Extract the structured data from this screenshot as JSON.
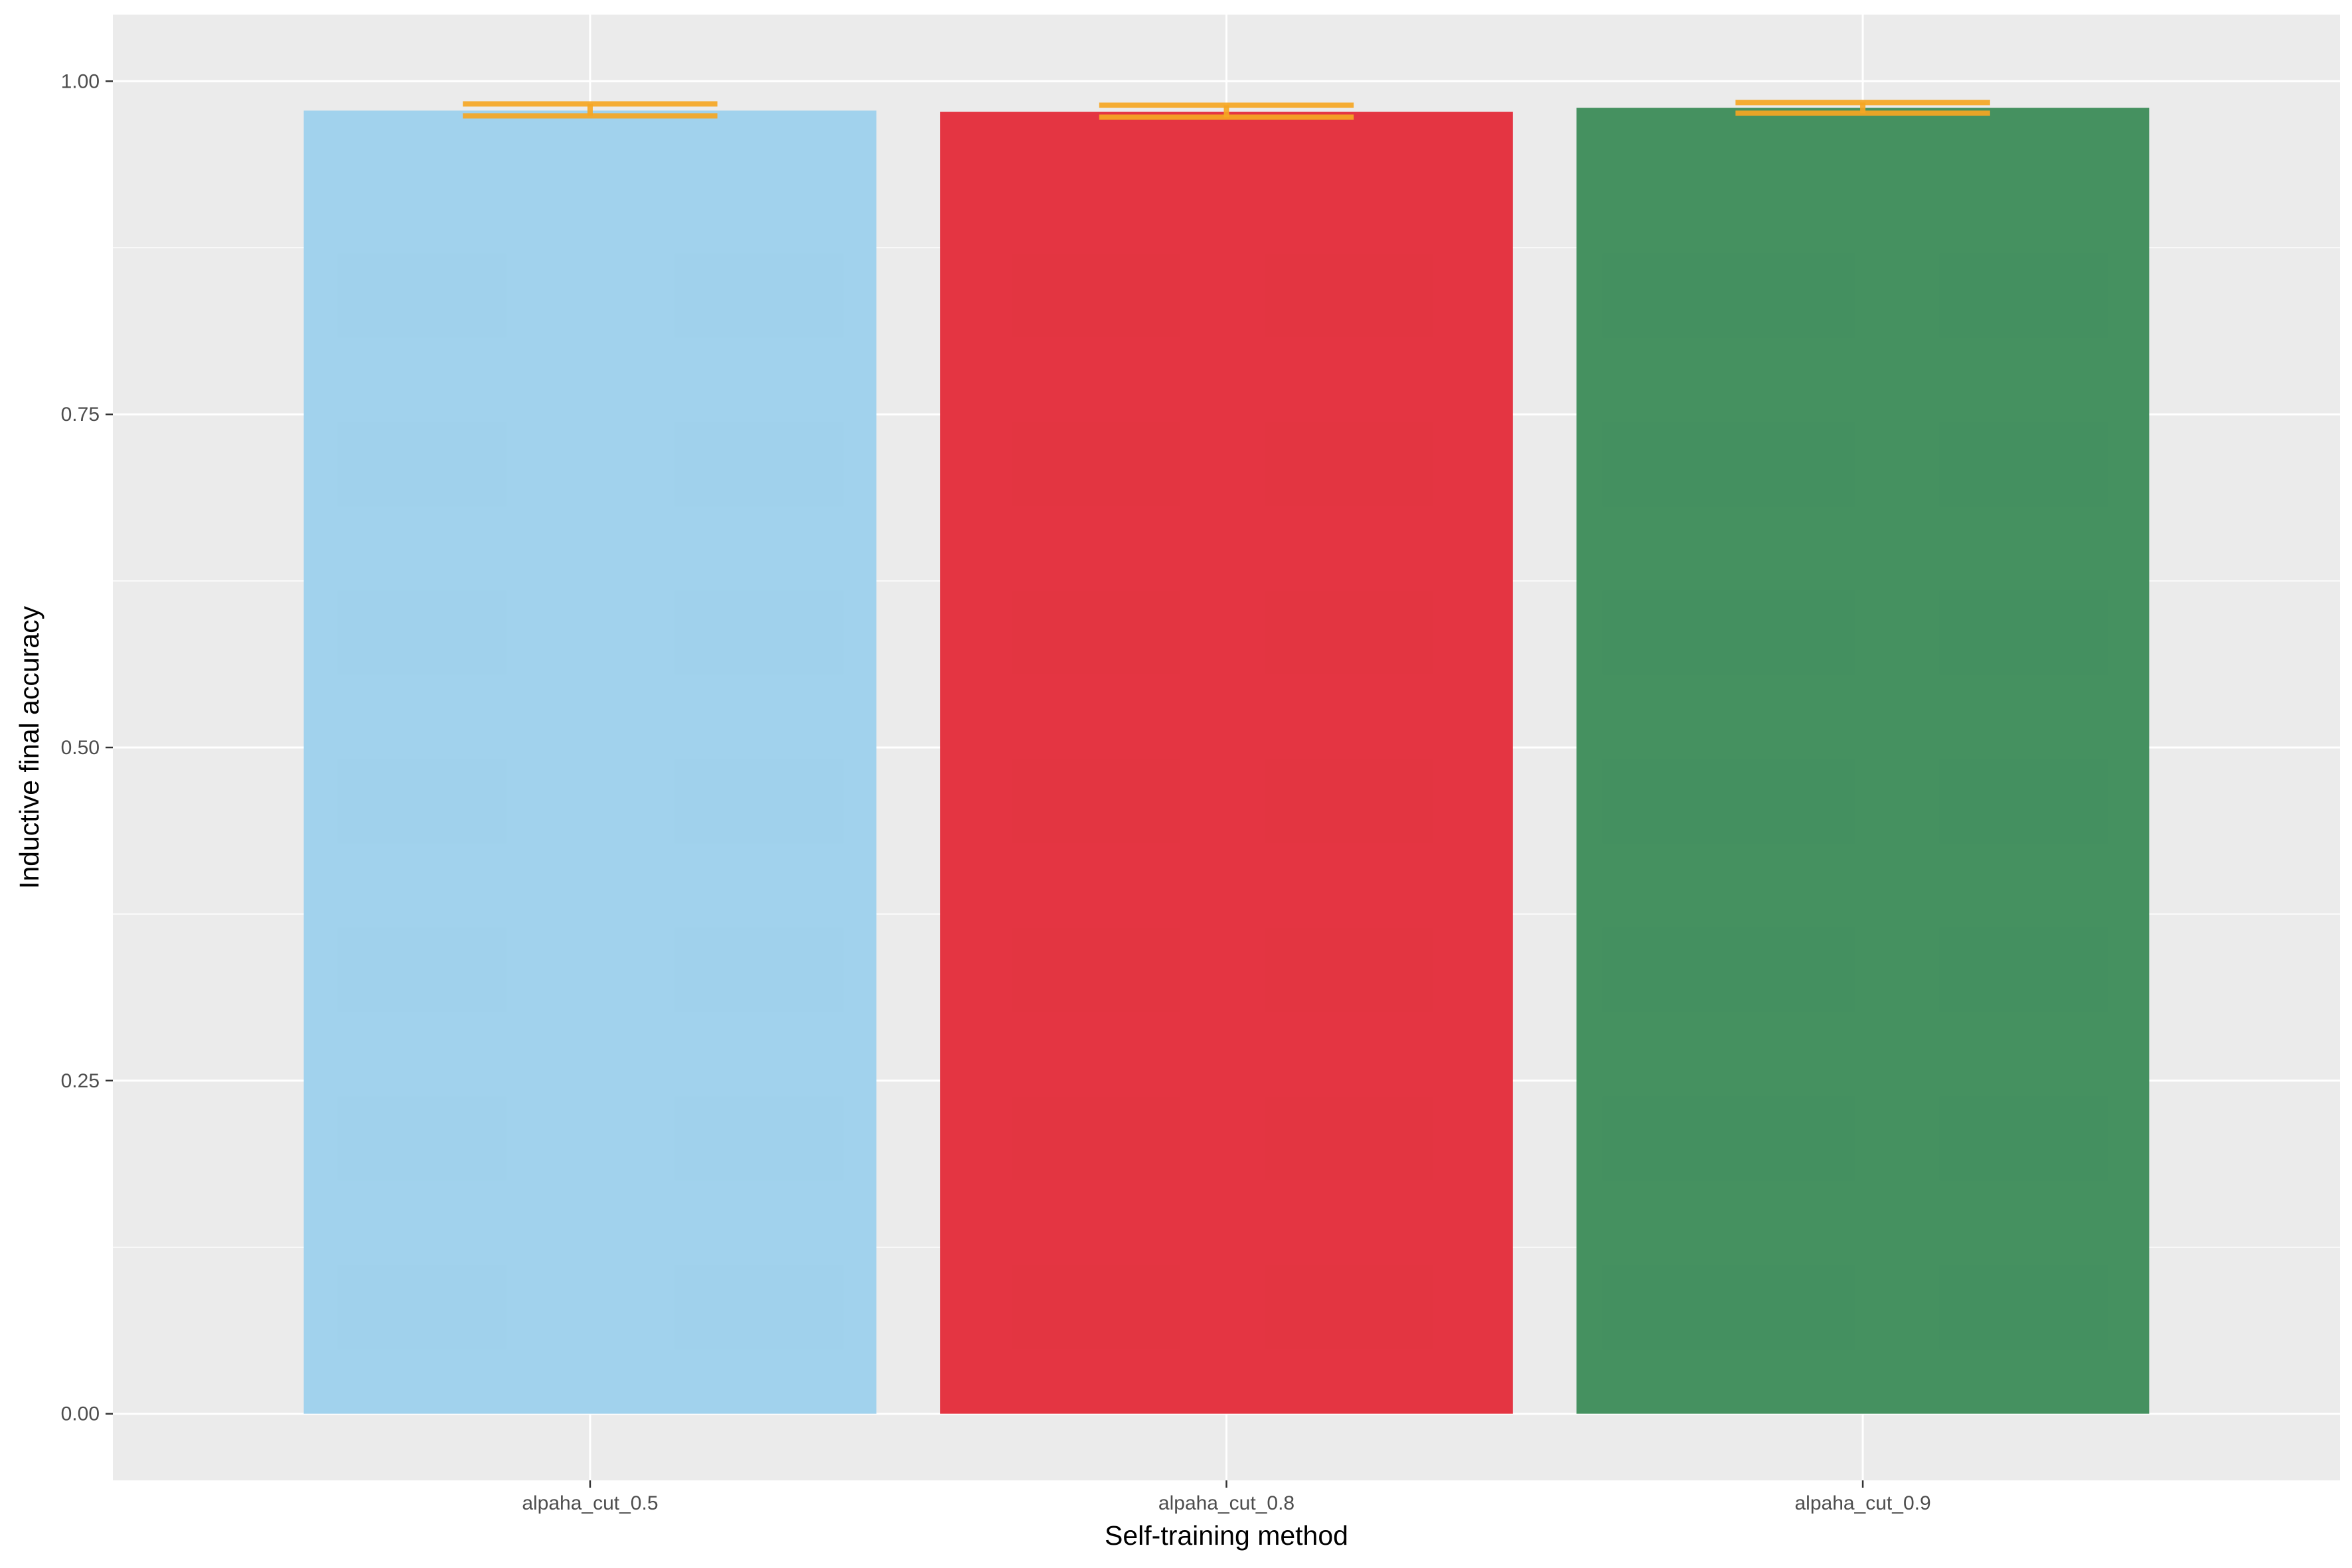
{
  "chart_data": {
    "type": "bar",
    "title": "",
    "xlabel": "Self-training method",
    "ylabel": "Inductive final accuracy",
    "categories": [
      "alpaha_cut_0.5",
      "alpaha_cut_0.8",
      "alpaha_cut_0.9"
    ],
    "values": [
      0.978,
      0.977,
      0.98
    ],
    "error_bars": [
      {
        "low": 0.974,
        "high": 0.983
      },
      {
        "low": 0.973,
        "high": 0.982
      },
      {
        "low": 0.976,
        "high": 0.984
      }
    ],
    "bar_colors": [
      "#9DD0EC",
      "#E32D3A",
      "#3D8C5A"
    ],
    "error_bar_color": "#F5A623",
    "ylim": [
      -0.05,
      1.05
    ],
    "y_ticks": [
      0.0,
      0.25,
      0.5,
      0.75,
      1.0
    ],
    "y_tick_labels": [
      "0.00",
      "0.25",
      "0.50",
      "0.75",
      "1.00"
    ],
    "grid": true,
    "panel_background": "#EBEBEB",
    "grid_color": "#FFFFFF",
    "legend": "none"
  }
}
